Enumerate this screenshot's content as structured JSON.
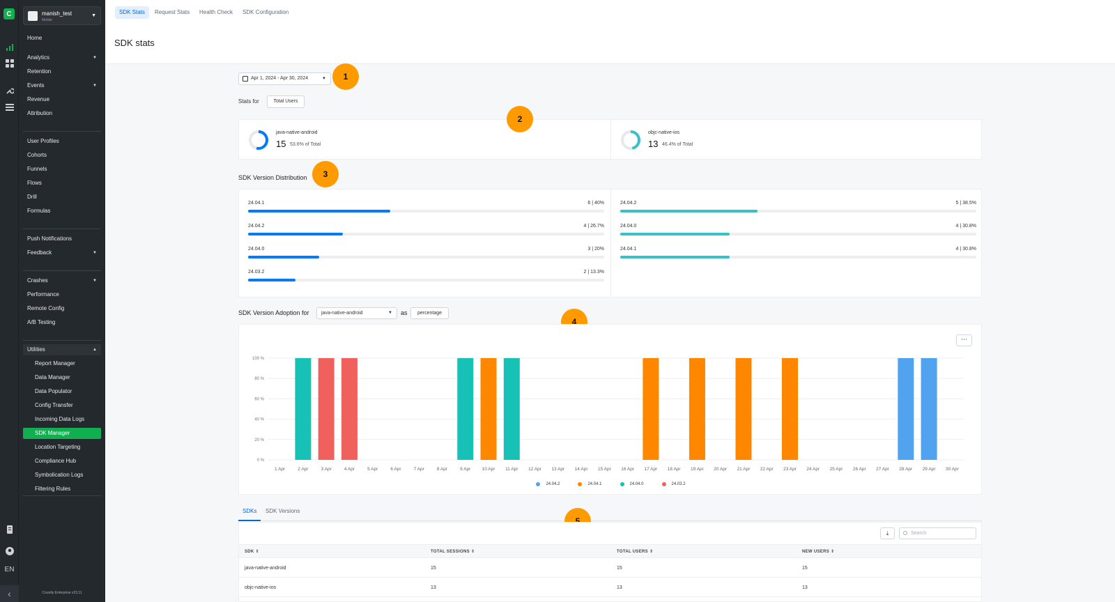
{
  "rail": {
    "lang": "EN"
  },
  "app": {
    "name": "manish_test",
    "type": "Mobile"
  },
  "sidebar": {
    "items": [
      {
        "label": "Home"
      },
      {
        "label": "Analytics"
      },
      {
        "label": "Retention"
      },
      {
        "label": "Events"
      },
      {
        "label": "Revenue"
      },
      {
        "label": "Attribution"
      },
      {
        "label": "User Profiles"
      },
      {
        "label": "Cohorts"
      },
      {
        "label": "Funnels"
      },
      {
        "label": "Flows"
      },
      {
        "label": "Drill"
      },
      {
        "label": "Formulas"
      },
      {
        "label": "Push Notifications"
      },
      {
        "label": "Feedback"
      },
      {
        "label": "Crashes"
      },
      {
        "label": "Performance"
      },
      {
        "label": "Remote Config"
      },
      {
        "label": "A/B Testing"
      },
      {
        "label": "Utilities"
      }
    ],
    "utilities": [
      {
        "label": "Report Manager"
      },
      {
        "label": "Data Manager"
      },
      {
        "label": "Data Populator"
      },
      {
        "label": "Config Transfer"
      },
      {
        "label": "Incoming Data Logs"
      },
      {
        "label": "SDK Manager"
      },
      {
        "label": "Location Targeting"
      },
      {
        "label": "Compliance Hub"
      },
      {
        "label": "Symbolication Logs"
      },
      {
        "label": "Filtering Rules"
      }
    ],
    "version": "Countly Enterprise v23.11"
  },
  "tabs": [
    "SDK Stats",
    "Request Stats",
    "Health Check",
    "SDK Configuration"
  ],
  "page_title": "SDK stats",
  "date_range": "Apr 1, 2024 - Apr 30, 2024",
  "stats_for_label": "Stats for",
  "stats_for_value": "Total Users",
  "callouts": [
    "1",
    "2",
    "3",
    "4",
    "5"
  ],
  "sdks": [
    {
      "name": "java-native-android",
      "count": "15",
      "pct_label": "53.6% of Total",
      "share": 0.536,
      "color": "#017aff"
    },
    {
      "name": "objc-native-ios",
      "count": "13",
      "pct_label": "46.4% of Total",
      "share": 0.464,
      "color": "#39c0c8"
    }
  ],
  "distribution_title": "SDK Version Distribution",
  "distribution": [
    {
      "color": "#017aff",
      "rows": [
        {
          "version": "24.04.1",
          "count": "6",
          "pct": "40%",
          "frac": 0.4
        },
        {
          "version": "24.04.2",
          "count": "4",
          "pct": "26.7%",
          "frac": 0.267
        },
        {
          "version": "24.04.0",
          "count": "3",
          "pct": "20%",
          "frac": 0.2
        },
        {
          "version": "24.03.2",
          "count": "2",
          "pct": "13.3%",
          "frac": 0.133
        }
      ]
    },
    {
      "color": "#39c0c8",
      "rows": [
        {
          "version": "24.04.2",
          "count": "5",
          "pct": "38.5%",
          "frac": 0.385
        },
        {
          "version": "24.04.0",
          "count": "4",
          "pct": "30.8%",
          "frac": 0.308
        },
        {
          "version": "24.04.1",
          "count": "4",
          "pct": "30.8%",
          "frac": 0.308
        }
      ]
    }
  ],
  "adoption": {
    "label": "SDK Version Adoption for",
    "sdk": "java-native-android",
    "as": "as",
    "mode": "percentage",
    "more": "⋯"
  },
  "chart_data": {
    "type": "bar",
    "ylim": [
      0,
      100
    ],
    "yticks": [
      "0 %",
      "20 %",
      "40 %",
      "60 %",
      "80 %",
      "100 %"
    ],
    "categories": [
      "1 Apr",
      "2 Apr",
      "3 Apr",
      "4 Apr",
      "5 Apr",
      "6 Apr",
      "7 Apr",
      "8 Apr",
      "9 Apr",
      "10 Apr",
      "11 Apr",
      "12 Apr",
      "13 Apr",
      "14 Apr",
      "15 Apr",
      "16 Apr",
      "17 Apr",
      "18 Apr",
      "19 Apr",
      "20 Apr",
      "21 Apr",
      "22 Apr",
      "23 Apr",
      "24 Apr",
      "25 Apr",
      "26 Apr",
      "27 Apr",
      "28 Apr",
      "29 Apr",
      "30 Apr"
    ],
    "series": [
      {
        "name": "24.04.2",
        "color": "#52a3ef",
        "values": [
          0,
          0,
          0,
          0,
          0,
          0,
          0,
          0,
          0,
          0,
          0,
          0,
          0,
          0,
          0,
          0,
          0,
          0,
          0,
          0,
          0,
          0,
          0,
          0,
          0,
          0,
          0,
          100,
          100,
          0
        ]
      },
      {
        "name": "24.04.1",
        "color": "#ff8700",
        "values": [
          0,
          0,
          0,
          0,
          0,
          0,
          0,
          0,
          0,
          100,
          0,
          0,
          0,
          0,
          0,
          0,
          100,
          0,
          100,
          0,
          100,
          0,
          100,
          0,
          0,
          0,
          0,
          0,
          0,
          0
        ]
      },
      {
        "name": "24.04.0",
        "color": "#17c1b6",
        "values": [
          0,
          100,
          0,
          0,
          0,
          0,
          0,
          0,
          100,
          0,
          100,
          0,
          0,
          0,
          0,
          0,
          0,
          0,
          0,
          0,
          0,
          0,
          0,
          0,
          0,
          0,
          0,
          0,
          0,
          0
        ]
      },
      {
        "name": "24.03.2",
        "color": "#f0605d",
        "values": [
          0,
          0,
          100,
          100,
          0,
          0,
          0,
          0,
          0,
          0,
          0,
          0,
          0,
          0,
          0,
          0,
          0,
          0,
          0,
          0,
          0,
          0,
          0,
          0,
          0,
          0,
          0,
          0,
          0,
          0
        ]
      }
    ],
    "legend_position": "bottom",
    "grid": true
  },
  "table": {
    "tabs": [
      "SDKs",
      "SDK Versions"
    ],
    "search_placeholder": "Search",
    "columns": [
      "SDK",
      "TOTAL SESSIONS",
      "TOTAL USERS",
      "NEW USERS"
    ],
    "rows": [
      [
        "java-native-android",
        "15",
        "15",
        "15"
      ],
      [
        "objc-native-ios",
        "13",
        "13",
        "13"
      ]
    ]
  }
}
